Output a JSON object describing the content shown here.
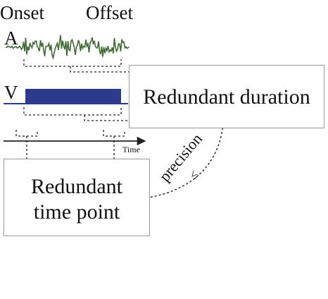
{
  "labels": {
    "onset": "Onset",
    "offset": "Offset",
    "audio": "A",
    "visual": "V",
    "time": "Time"
  },
  "boxes": {
    "duration": "Redundant duration",
    "timepoint_line1": "Redundant",
    "timepoint_line2": "time point"
  },
  "relation": {
    "label": "precision",
    "symbol": "≤"
  },
  "colors": {
    "audio_wave": "#3f6b34",
    "visual_bar": "#2e3a8c",
    "box_border": "#9a9a9a",
    "lines": "#222222"
  }
}
